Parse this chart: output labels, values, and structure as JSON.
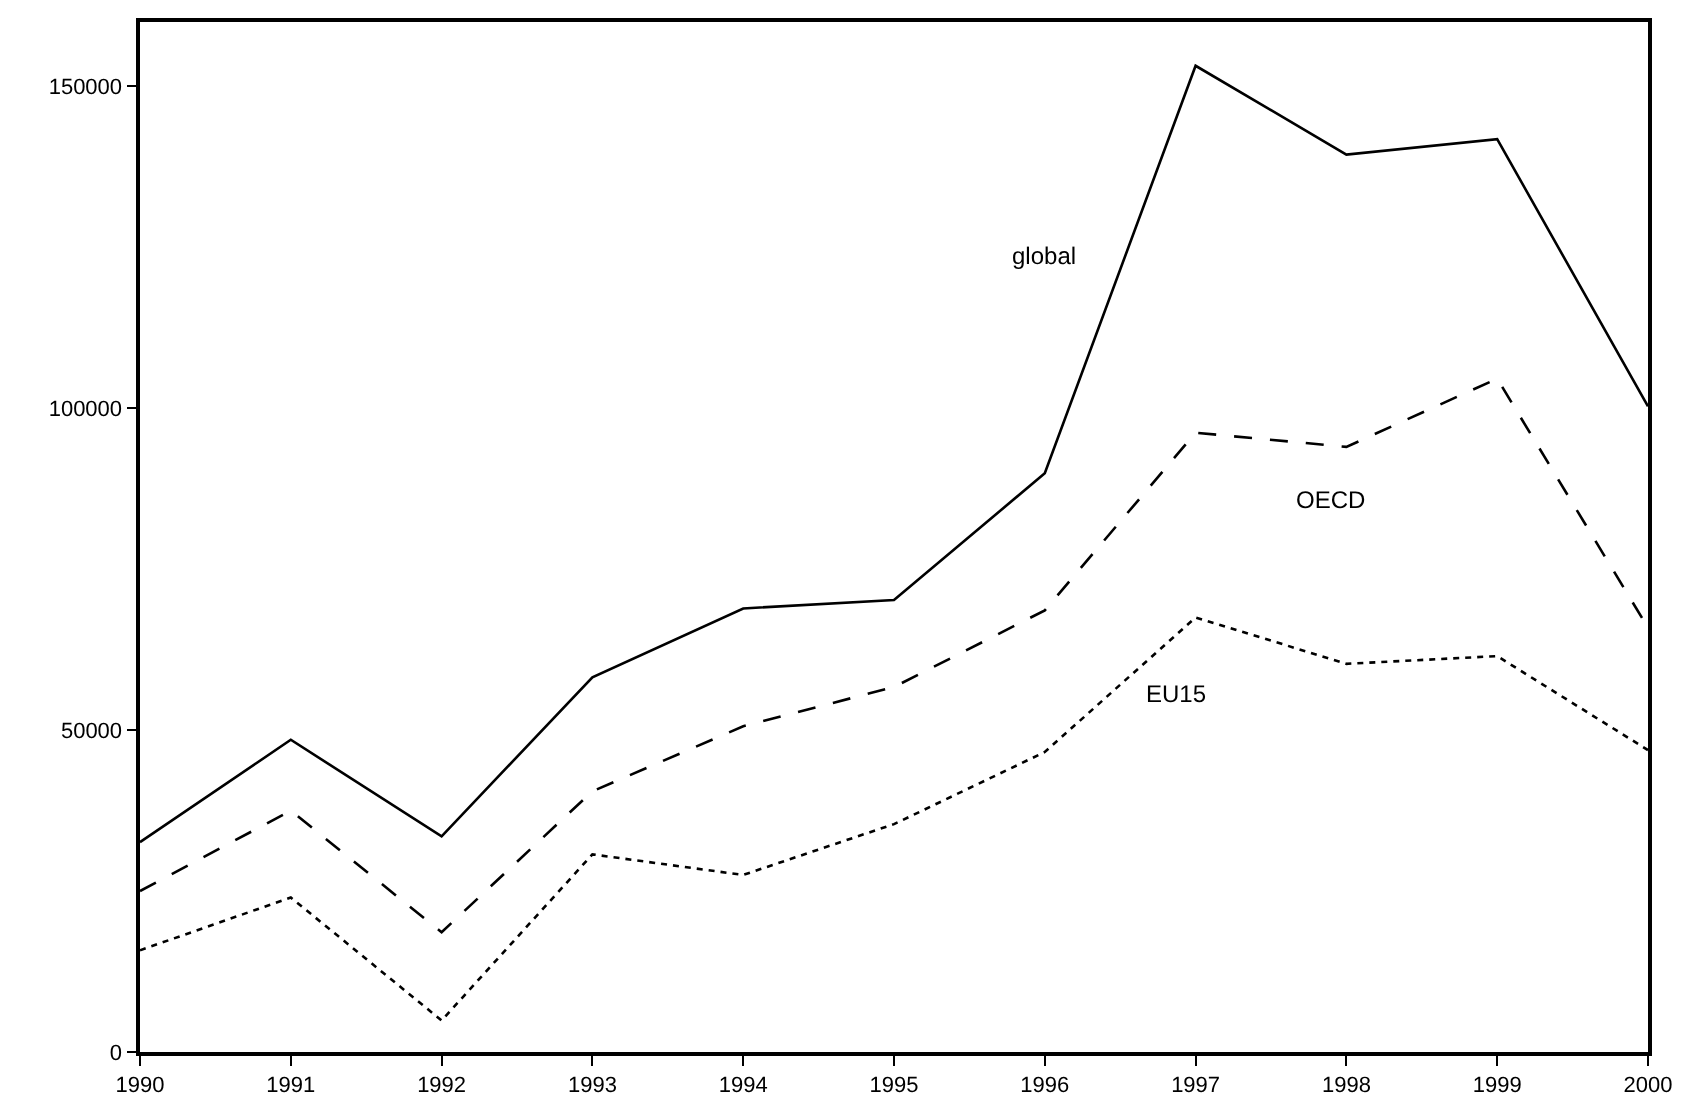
{
  "chart_data": {
    "type": "line",
    "x": [
      1990,
      1991,
      1992,
      1993,
      1994,
      1995,
      1996,
      1997,
      1998,
      1999,
      2000
    ],
    "series": [
      {
        "name": "global",
        "color": "#000000",
        "line_style": "solid",
        "values": [
          32600,
          48500,
          33500,
          58200,
          68900,
          70200,
          89900,
          153200,
          139400,
          141800,
          100300
        ]
      },
      {
        "name": "OECD",
        "color": "#000000",
        "line_style": "dashed",
        "values": [
          25000,
          37500,
          18600,
          40500,
          50600,
          56700,
          68600,
          96200,
          94000,
          104600,
          65900
        ]
      },
      {
        "name": "EU15",
        "color": "#000000",
        "line_style": "dotted",
        "values": [
          15800,
          24000,
          4900,
          30700,
          27500,
          35400,
          46600,
          67500,
          60300,
          61500,
          46900
        ]
      }
    ],
    "xlim": [
      1990,
      2000
    ],
    "xticks": [
      1990,
      1991,
      1992,
      1993,
      1994,
      1995,
      1996,
      1997,
      1998,
      1999,
      2000
    ],
    "ylim": [
      0,
      160000
    ],
    "yticks": [
      0,
      50000,
      100000,
      150000
    ]
  }
}
